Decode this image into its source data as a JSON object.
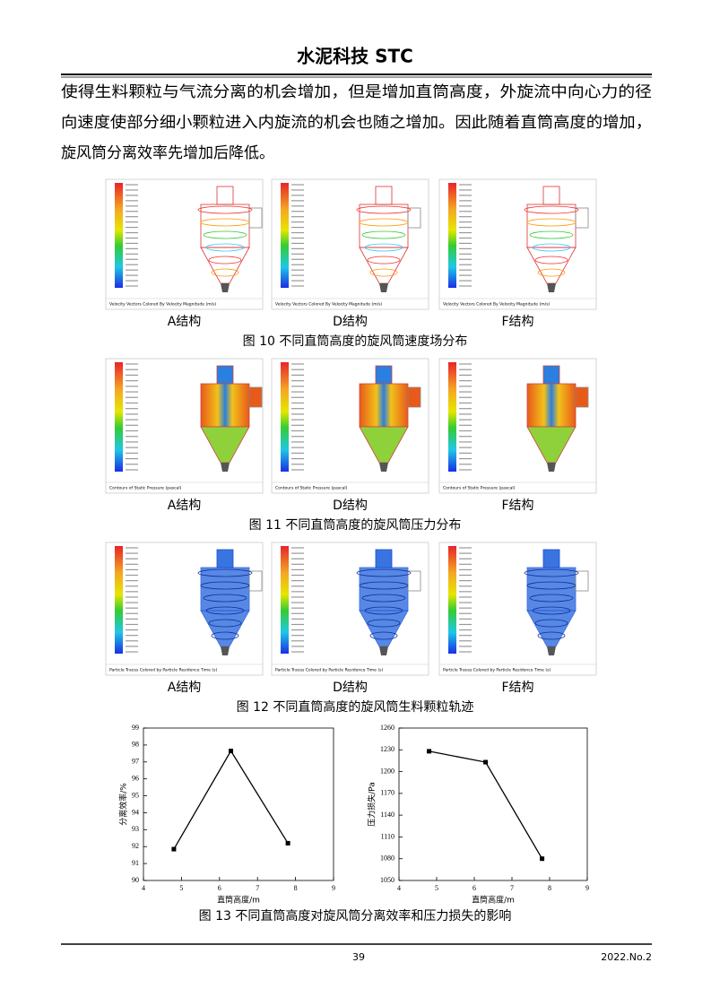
{
  "header": {
    "title": "水泥科技 STC"
  },
  "paragraph": [
    "使得生料颗粒与气流分离的机会增加，但是增加直筒高度，外旋流中向心力的径",
    "向速度使部分细小颗粒进入内旋流的机会也随之增加。因此随着直筒高度的增加，",
    "旋风筒分离效率先增加后降低。"
  ],
  "figures": [
    {
      "panels": [
        {
          "label": "A结构",
          "caption": "Velocity Vectors Colored By Velocity Magnitude (m/s)"
        },
        {
          "label": "D结构",
          "caption": "Velocity Vectors Colored By Velocity Magnitude (m/s)"
        },
        {
          "label": "F结构",
          "caption": "Velocity Vectors Colored By Velocity Magnitude (m/s)"
        }
      ],
      "caption": "图 10  不同直筒高度的旋风筒速度场分布"
    },
    {
      "panels": [
        {
          "label": "A结构",
          "caption": "Contours of Static Pressure (pascal)"
        },
        {
          "label": "D结构",
          "caption": "Contours of Static Pressure (pascal)"
        },
        {
          "label": "F结构",
          "caption": "Contours of Static Pressure (pascal)"
        }
      ],
      "caption": "图 11  不同直筒高度的旋风筒压力分布"
    },
    {
      "panels": [
        {
          "label": "A结构",
          "caption": "Particle Traces Colored by Particle Residence Time (s)"
        },
        {
          "label": "D结构",
          "caption": "Particle Traces Colored by Particle Residence Time (s)"
        },
        {
          "label": "F结构",
          "caption": "Particle Traces Colored by Particle Residence Time (s)"
        }
      ],
      "caption": "图 12  不同直筒高度的旋风筒生料颗粒轨迹"
    }
  ],
  "chart_caption": "图 13  不同直筒高度对旋风筒分离效率和压力损失的影响",
  "chart_data": [
    {
      "type": "line",
      "x": [
        4.8,
        6.3,
        7.8
      ],
      "values": [
        91.85,
        97.65,
        92.2
      ],
      "color": "#000000",
      "xlim": [
        4,
        9
      ],
      "xticks": [
        4,
        5,
        6,
        7,
        8,
        9
      ],
      "ylim": [
        90,
        99
      ],
      "yticks": [
        90,
        91,
        92,
        93,
        94,
        95,
        96,
        97,
        98,
        99
      ],
      "xlabel": "直筒高度/m",
      "ylabel": "分离效率/%"
    },
    {
      "type": "line",
      "x": [
        4.8,
        6.3,
        7.8
      ],
      "values": [
        1228,
        1213,
        1080
      ],
      "color": "#000000",
      "xlim": [
        4,
        9
      ],
      "xticks": [
        4,
        5,
        6,
        7,
        8,
        9
      ],
      "ylim": [
        1050,
        1260
      ],
      "yticks": [
        1050,
        1080,
        1110,
        1140,
        1170,
        1200,
        1230,
        1260
      ],
      "xlabel": "直筒高度/m",
      "ylabel": "压力损失/Pa"
    }
  ],
  "footer": {
    "page": "39",
    "issue": "2022.No.2"
  }
}
